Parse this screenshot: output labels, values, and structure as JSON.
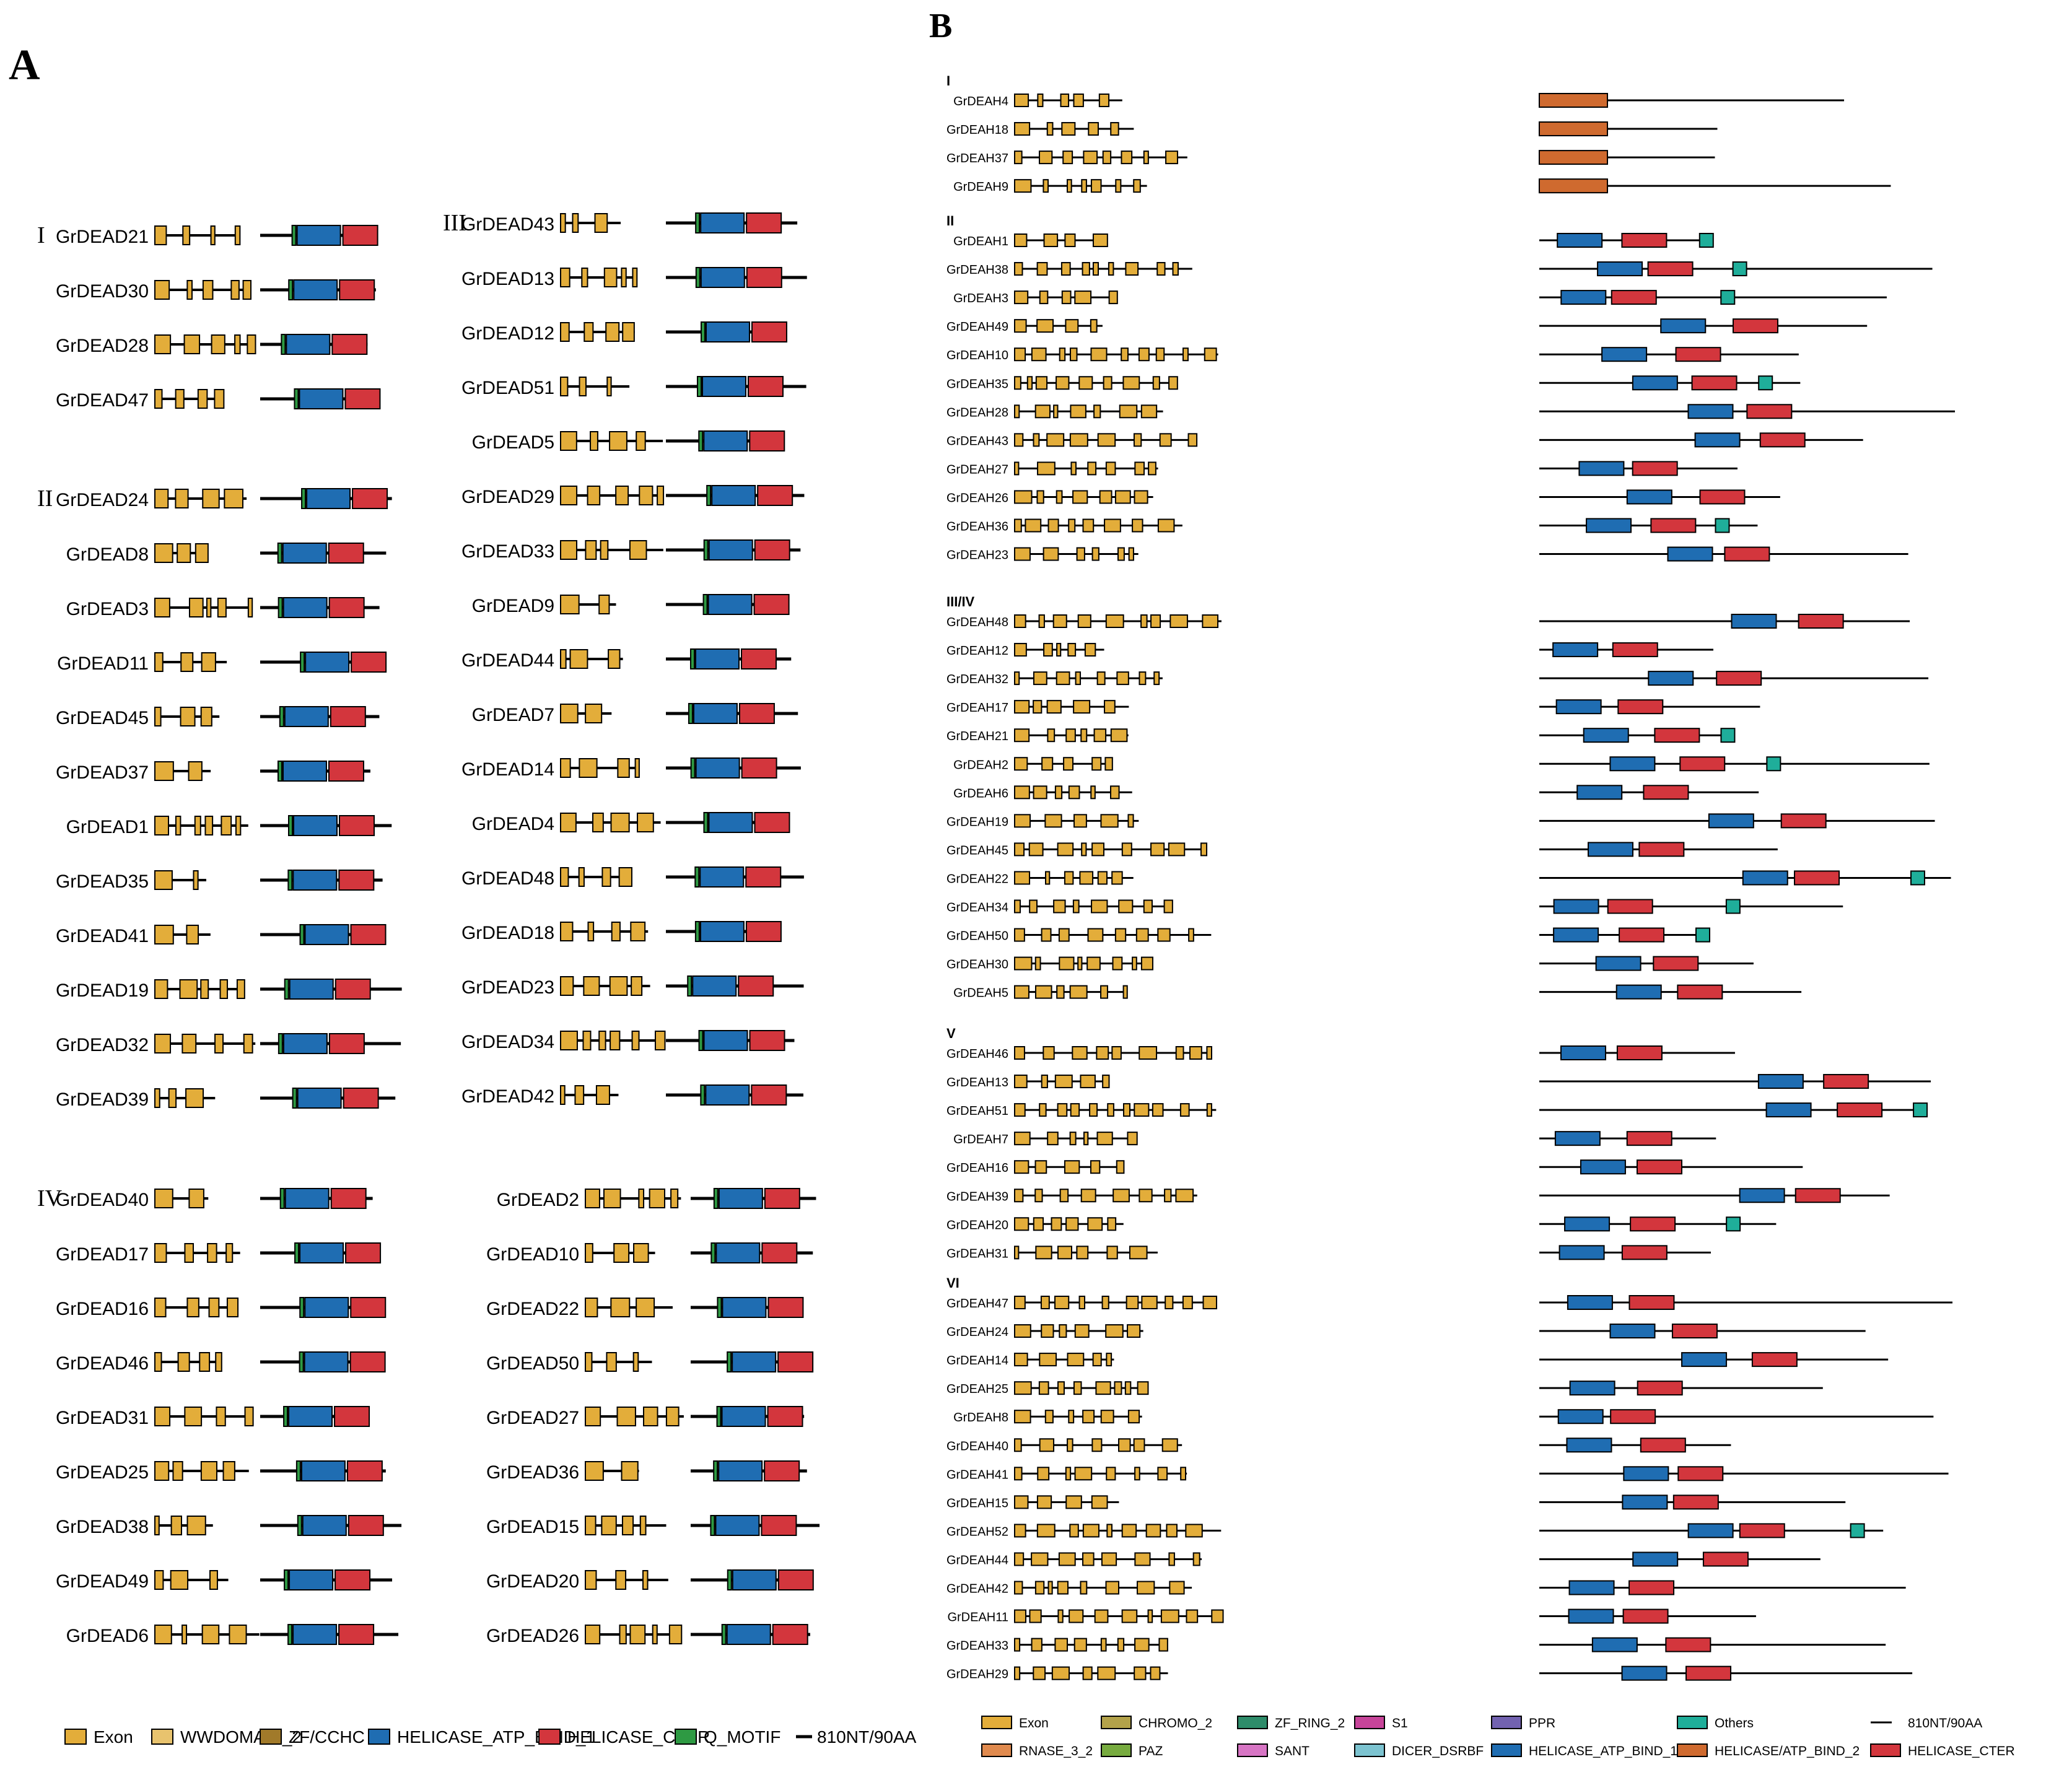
{
  "panel_a": {
    "letter": "A",
    "groups": [
      {
        "label": "I",
        "genes": [
          "GrDEAD21",
          "GrDEAD30",
          "GrDEAD28",
          "GrDEAD47"
        ]
      },
      {
        "label": "II",
        "genes": [
          "GrDEAD24",
          "GrDEAD8",
          "GrDEAD3",
          "GrDEAD11",
          "GrDEAD45",
          "GrDEAD37",
          "GrDEAD1",
          "GrDEAD35",
          "GrDEAD41",
          "GrDEAD19",
          "GrDEAD32",
          "GrDEAD39"
        ]
      },
      {
        "label": "III",
        "genes": [
          "GrDEAD43",
          "GrDEAD13",
          "GrDEAD12",
          "GrDEAD51",
          "GrDEAD5",
          "GrDEAD29",
          "GrDEAD33",
          "GrDEAD9",
          "GrDEAD44",
          "GrDEAD7",
          "GrDEAD14",
          "GrDEAD4",
          "GrDEAD48",
          "GrDEAD18",
          "GrDEAD23",
          "GrDEAD34",
          "GrDEAD42"
        ]
      },
      {
        "label": "IV",
        "genes": [
          "GrDEAD40",
          "GrDEAD17",
          "GrDEAD16",
          "GrDEAD46",
          "GrDEAD31",
          "GrDEAD25",
          "GrDEAD38",
          "GrDEAD49",
          "GrDEAD6",
          "GrDEAD2",
          "GrDEAD10",
          "GrDEAD22",
          "GrDEAD50",
          "GrDEAD27",
          "GrDEAD36",
          "GrDEAD15",
          "GrDEAD20",
          "GrDEAD26"
        ]
      }
    ],
    "legend": [
      {
        "label": "Exon",
        "color": "#e3ad3a"
      },
      {
        "label": "WWDOMAIN_2",
        "color": "#e8c36e"
      },
      {
        "label": "ZF/CCHC",
        "color": "#a17a2a"
      },
      {
        "label": "HELICASE_ATP_BIND_1",
        "color": "#1f6db2"
      },
      {
        "label": "HELICASE_CTER",
        "color": "#d3363d"
      },
      {
        "label": "Q_MOTIF",
        "color": "#2e9a43"
      },
      {
        "label": "810NT/90AA",
        "color": "#000000"
      }
    ]
  },
  "panel_b": {
    "letter": "B",
    "groups": [
      {
        "label": "I",
        "genes": [
          "GrDEAH4",
          "GrDEAH18",
          "GrDEAH37",
          "GrDEAH9"
        ]
      },
      {
        "label": "II",
        "genes": [
          "GrDEAH1",
          "GrDEAH38",
          "GrDEAH3",
          "GrDEAH49",
          "GrDEAH10",
          "GrDEAH35",
          "GrDEAH28",
          "GrDEAH43",
          "GrDEAH27",
          "GrDEAH26",
          "GrDEAH36",
          "GrDEAH23"
        ]
      },
      {
        "label": "III/IV",
        "genes": [
          "GrDEAH48",
          "GrDEAH12",
          "GrDEAH32",
          "GrDEAH17",
          "GrDEAH21",
          "GrDEAH2",
          "GrDEAH6",
          "GrDEAH19",
          "GrDEAH45",
          "GrDEAH22",
          "GrDEAH34",
          "GrDEAH50",
          "GrDEAH30",
          "GrDEAH5"
        ]
      },
      {
        "label": "V",
        "genes": [
          "GrDEAH46",
          "GrDEAH13",
          "GrDEAH51",
          "GrDEAH7",
          "GrDEAH16",
          "GrDEAH39",
          "GrDEAH20",
          "GrDEAH31"
        ]
      },
      {
        "label": "VI",
        "genes": [
          "GrDEAH47",
          "GrDEAH24",
          "GrDEAH14",
          "GrDEAH25",
          "GrDEAH8",
          "GrDEAH40",
          "GrDEAH41",
          "GrDEAH15",
          "GrDEAH52",
          "GrDEAH44",
          "GrDEAH42",
          "GrDEAH11",
          "GrDEAH33",
          "GrDEAH29"
        ]
      }
    ],
    "legend": [
      {
        "label": "Exon",
        "color": "#e3ad3a"
      },
      {
        "label": "CHROMO_2",
        "color": "#b3a24a"
      },
      {
        "label": "ZF_RING_2",
        "color": "#2e8c6a"
      },
      {
        "label": "S1",
        "color": "#c7449a"
      },
      {
        "label": "PPR",
        "color": "#7262b0"
      },
      {
        "label": "Others",
        "color": "#1fae9a"
      },
      {
        "label": "810NT/90AA",
        "color": "#000000"
      },
      {
        "label": "RNASE_3_2",
        "color": "#e08a4e"
      },
      {
        "label": "PAZ",
        "color": "#77ab3f"
      },
      {
        "label": "SANT",
        "color": "#d775c4"
      },
      {
        "label": "DICER_DSRBF",
        "color": "#7cc3d0"
      },
      {
        "label": "HELICASE_ATP_BIND_1",
        "color": "#1f6db2"
      },
      {
        "label": "HELICASE/ATP_BIND_2",
        "color": "#cf6a2f"
      },
      {
        "label": "HELICASE_CTER",
        "color": "#d3363d"
      }
    ]
  }
}
